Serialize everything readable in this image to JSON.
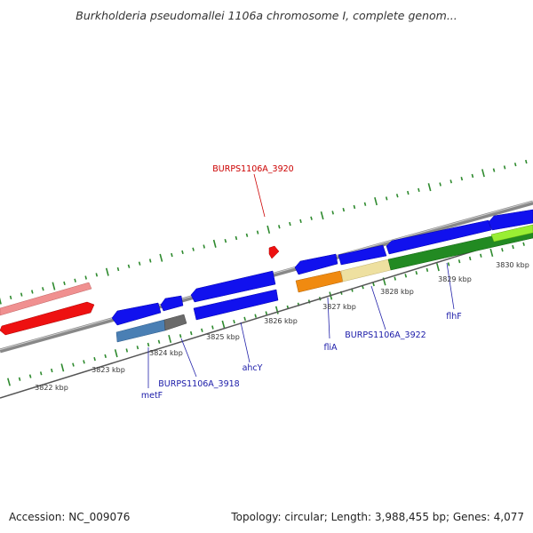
{
  "title": "Burkholderia pseudomallei 1106a chromosome I, complete genom...",
  "footer": {
    "accession": "Accession: NC_009076",
    "summary": "Topology: circular; Length: 3,988,455 bp; Genes: 4,077"
  },
  "scale": {
    "ticks": [
      "3822 kbp",
      "3823 kbp",
      "3824 kbp",
      "3825 kbp",
      "3826 kbp",
      "3827 kbp",
      "3828 kbp",
      "3829 kbp",
      "3830 kbp"
    ]
  },
  "features": [
    {
      "id": "upper-1",
      "strand": "forward",
      "color": "#f09090"
    },
    {
      "id": "upper-2",
      "strand": "forward",
      "color": "#ee1111"
    },
    {
      "id": "upper-3",
      "strand": "reverse",
      "color": "#1111ee"
    },
    {
      "id": "upper-4",
      "strand": "reverse",
      "color": "#1111ee"
    },
    {
      "id": "upper-5",
      "strand": "reverse",
      "color": "#1111ee"
    },
    {
      "id": "upper-6",
      "strand": "reverse",
      "color": "#1111ee"
    },
    {
      "id": "upper-7",
      "strand": "forward",
      "color": "#1111ee"
    },
    {
      "id": "upper-8",
      "strand": "reverse",
      "color": "#1111ee"
    },
    {
      "id": "upper-9",
      "strand": "reverse",
      "color": "#1111ee"
    },
    {
      "id": "lower-1",
      "strand": "reverse",
      "color": "#4a7fb4"
    },
    {
      "id": "lower-2",
      "strand": "reverse",
      "color": "#6a6a6a"
    },
    {
      "id": "lower-3",
      "strand": "reverse",
      "color": "#1111ee"
    },
    {
      "id": "lower-4",
      "strand": "reverse",
      "color": "#f08a10"
    },
    {
      "id": "lower-5",
      "strand": "reverse",
      "color": "#eee0a0"
    },
    {
      "id": "lower-6",
      "strand": "reverse",
      "color": "#228a22"
    },
    {
      "id": "lower-7",
      "strand": "reverse",
      "color": "#99ee33"
    },
    {
      "id": "marker",
      "strand": "forward",
      "color": "#ee1111"
    }
  ],
  "labels": [
    {
      "id": "BURPS1106A_3920",
      "text": "BURPS1106A_3920",
      "color": "#cc0000"
    },
    {
      "id": "metF",
      "text": "metF",
      "color": "#1a1aa8"
    },
    {
      "id": "BURPS1106A_3918",
      "text": "BURPS1106A_3918",
      "color": "#1a1aa8"
    },
    {
      "id": "ahcY",
      "text": "ahcY",
      "color": "#1a1aa8"
    },
    {
      "id": "fliA",
      "text": "fliA",
      "color": "#1a1aa8"
    },
    {
      "id": "BURPS1106A_3922",
      "text": "BURPS1106A_3922",
      "color": "#1a1aa8"
    },
    {
      "id": "flhF",
      "text": "flhF",
      "color": "#1a1aa8"
    }
  ],
  "colors": {
    "backbone": "#888888",
    "tick": "#2e8a2e",
    "leader_blue": "#2222aa",
    "leader_red": "#cc0000"
  }
}
